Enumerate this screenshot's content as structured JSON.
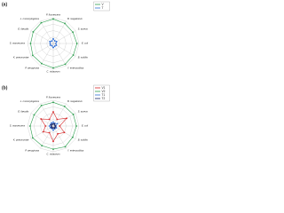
{
  "chart_data": [
    {
      "type": "radar",
      "title": "(a)",
      "categories": [
        "P. fluorescens",
        "B. megaterium",
        "S. aureus",
        "E. coli",
        "B. subtilis",
        "Y. enterocolitica",
        "C. violaceum",
        "P. aeruginosa",
        "K. pneumoniae",
        "S. marcescens",
        "E. faecalis",
        "L. monocytogenes"
      ],
      "rlim": [
        0,
        1
      ],
      "series": [
        {
          "name": "V",
          "color": "#2e9e4f",
          "values": [
            0.95,
            0.9,
            0.88,
            0.92,
            0.9,
            0.93,
            0.95,
            0.9,
            0.92,
            0.88,
            0.9,
            0.93
          ]
        },
        {
          "name": "T",
          "color": "#2f6fd6",
          "values": [
            0.18,
            0.12,
            0.15,
            0.1,
            0.14,
            0.12,
            0.16,
            0.1,
            0.13,
            0.12,
            0.15,
            0.11
          ]
        }
      ]
    },
    {
      "type": "radar",
      "title": "(b)",
      "categories": [
        "P. fluorescens",
        "B. megaterium",
        "S. aureus",
        "E. coli",
        "B. subtilis",
        "Y. enterocolitica",
        "C. violaceum",
        "P. aeruginosa",
        "K. pneumoniae",
        "S. marcescens",
        "E. faecalis",
        "L. monocytogenes"
      ],
      "rlim": [
        0,
        1
      ],
      "series": [
        {
          "name": "V1",
          "color": "#d62728",
          "values": [
            0.55,
            0.3,
            0.6,
            0.25,
            0.5,
            0.35,
            0.6,
            0.3,
            0.45,
            0.3,
            0.55,
            0.3
          ]
        },
        {
          "name": "V2",
          "color": "#2e9e4f",
          "values": [
            0.92,
            0.88,
            0.9,
            0.9,
            0.87,
            0.93,
            0.9,
            0.88,
            0.92,
            0.9,
            0.86,
            0.92
          ]
        },
        {
          "name": "T1",
          "color": "#2f6fd6",
          "values": [
            0.15,
            0.12,
            0.18,
            0.1,
            0.14,
            0.12,
            0.16,
            0.11,
            0.13,
            0.15,
            0.12,
            0.14
          ]
        },
        {
          "name": "T2",
          "color": "#1b2a6b",
          "values": [
            0.08,
            0.1,
            0.07,
            0.09,
            0.08,
            0.1,
            0.07,
            0.09,
            0.08,
            0.07,
            0.1,
            0.08
          ]
        }
      ]
    }
  ]
}
